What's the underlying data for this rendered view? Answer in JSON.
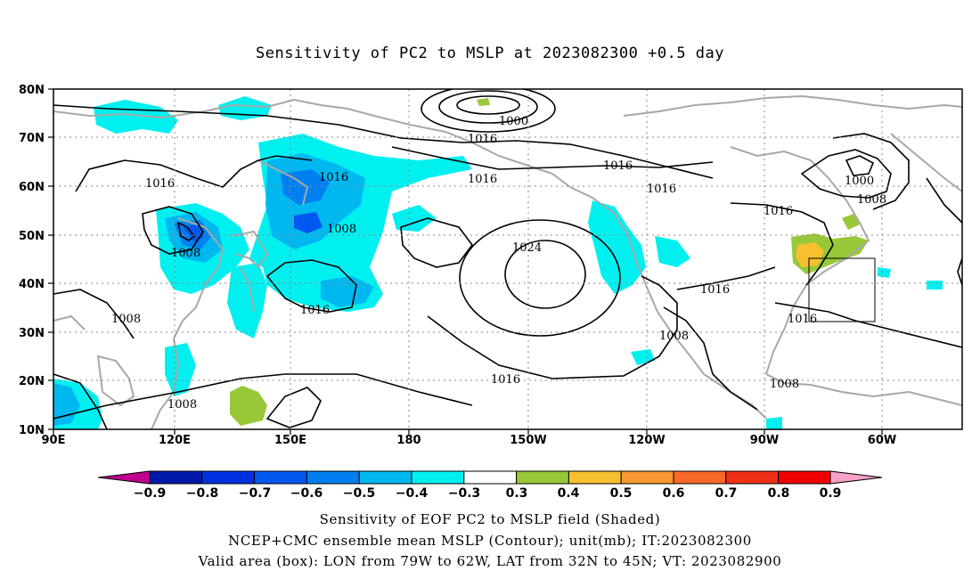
{
  "title": "Sensitivity of PC2 to MSLP at 2023082300 +0.5 day",
  "map": {
    "lat_ticks": [
      "80N",
      "70N",
      "60N",
      "50N",
      "40N",
      "30N",
      "20N",
      "10N"
    ],
    "lon_ticks": [
      "90E",
      "120E",
      "150E",
      "180",
      "150W",
      "120W",
      "90W",
      "60W"
    ],
    "contour_labels": [
      {
        "name": "contour-label",
        "text": "1000"
      },
      {
        "name": "contour-label",
        "text": "1016"
      },
      {
        "name": "contour-label",
        "text": "1016"
      },
      {
        "name": "contour-label",
        "text": "1016"
      },
      {
        "name": "contour-label",
        "text": "1016"
      },
      {
        "name": "contour-label",
        "text": "1016"
      },
      {
        "name": "contour-label",
        "text": "1016"
      },
      {
        "name": "contour-label",
        "text": "1000"
      },
      {
        "name": "contour-label",
        "text": "1008"
      },
      {
        "name": "contour-label",
        "text": "1016"
      },
      {
        "name": "contour-label",
        "text": "1008"
      },
      {
        "name": "contour-label",
        "text": "1008"
      },
      {
        "name": "contour-label",
        "text": "1024"
      },
      {
        "name": "contour-label",
        "text": "1016"
      },
      {
        "name": "contour-label",
        "text": "1016"
      },
      {
        "name": "contour-label",
        "text": "1016"
      },
      {
        "name": "contour-label",
        "text": "1008"
      },
      {
        "name": "contour-label",
        "text": "1008"
      },
      {
        "name": "contour-label",
        "text": "1016"
      },
      {
        "name": "contour-label",
        "text": "1008"
      },
      {
        "name": "contour-label",
        "text": "1008"
      }
    ],
    "valid_box": {
      "lon": "79W to 62W",
      "lat": "32N to 45N"
    }
  },
  "colorbar": {
    "labels": [
      "−0.9",
      "−0.8",
      "−0.7",
      "−0.6",
      "−0.5",
      "−0.4",
      "−0.3",
      "0.3",
      "0.4",
      "0.5",
      "0.6",
      "0.7",
      "0.8",
      "0.9"
    ],
    "colors": [
      "#c0008f",
      "#0018a8",
      "#0030e0",
      "#0058f0",
      "#0080f0",
      "#00b8f0",
      "#00f0f0",
      "#ffffff",
      "#98c838",
      "#f8c030",
      "#f89830",
      "#f86828",
      "#f03018",
      "#f00000",
      "#f8a0c8"
    ]
  },
  "captions": {
    "line1": "Sensitivity of EOF PC2 to MSLP field (Shaded)",
    "line2": "NCEP+CMC ensemble mean MSLP (Contour); unit(mb); IT:2023082300",
    "line3": "Valid area (box): LON from 79W to 62W, LAT from 32N to 45N; VT: 2023082900"
  }
}
